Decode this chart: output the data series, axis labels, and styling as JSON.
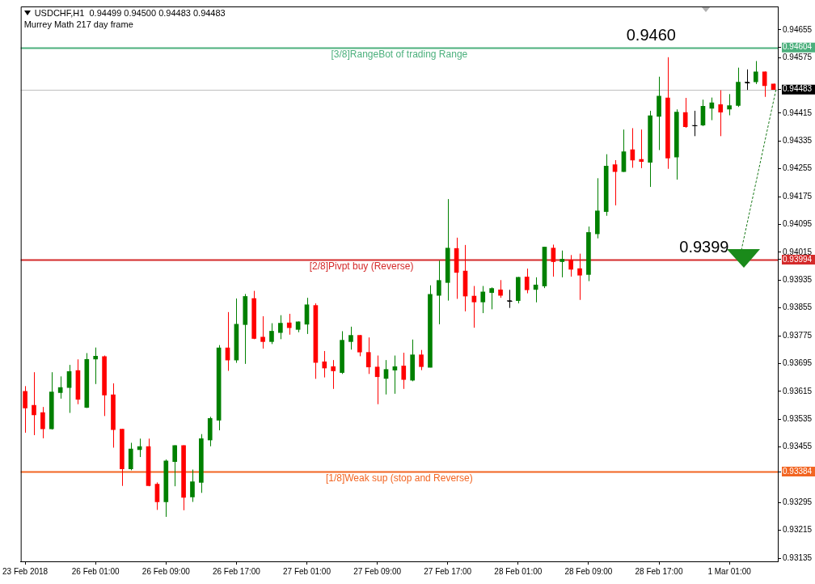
{
  "chart_data": {
    "type": "candlestick",
    "title": "USDCHF,H1  0.94499 0.94500 0.94483 0.94483",
    "subtitle": "Murrey Math 217 day frame",
    "categories": [
      "23 Feb 2018",
      null,
      null,
      null,
      null,
      null,
      null,
      null,
      "26 Feb 01:00",
      null,
      null,
      null,
      null,
      null,
      null,
      null,
      "26 Feb 09:00",
      null,
      null,
      null,
      null,
      null,
      null,
      null,
      "26 Feb 17:00",
      null,
      null,
      null,
      null,
      null,
      null,
      null,
      "27 Feb 01:00",
      null,
      null,
      null,
      null,
      null,
      null,
      null,
      "27 Feb 09:00",
      null,
      null,
      null,
      null,
      null,
      null,
      null,
      "27 Feb 17:00",
      null,
      null,
      null,
      null,
      null,
      null,
      null,
      "28 Feb 01:00",
      null,
      null,
      null,
      null,
      null,
      null,
      null,
      "28 Feb 09:00",
      null,
      null,
      null,
      null,
      null,
      null,
      null,
      "28 Feb 17:00",
      null,
      null,
      null,
      null,
      null,
      null,
      null,
      "1 Mar 01:00",
      null,
      null,
      null,
      null,
      null
    ],
    "ohlc": [
      [
        0.93615,
        0.9363,
        0.93496,
        0.93567
      ],
      [
        0.93575,
        0.9367,
        0.93489,
        0.93547
      ],
      [
        0.93554,
        0.9357,
        0.9348,
        0.93507
      ],
      [
        0.93507,
        0.9367,
        0.93505,
        0.93613
      ],
      [
        0.93611,
        0.93658,
        0.93594,
        0.93626
      ],
      [
        0.93626,
        0.93691,
        0.93553,
        0.93672
      ],
      [
        0.93675,
        0.93707,
        0.93578,
        0.93592
      ],
      [
        0.93569,
        0.93725,
        0.93567,
        0.93707
      ],
      [
        0.93708,
        0.93741,
        0.93636,
        0.93716
      ],
      [
        0.93715,
        0.93718,
        0.93544,
        0.93604
      ],
      [
        0.93605,
        0.93638,
        0.93453,
        0.93505
      ],
      [
        0.93506,
        0.93507,
        0.93343,
        0.93392
      ],
      [
        0.93392,
        0.93467,
        0.93388,
        0.93449
      ],
      [
        0.93447,
        0.93479,
        0.93426,
        0.93456
      ],
      [
        0.93456,
        0.93479,
        0.93342,
        0.93344
      ],
      [
        0.93348,
        0.93353,
        0.93274,
        0.93297
      ],
      [
        0.93297,
        0.93419,
        0.93254,
        0.93415
      ],
      [
        0.93413,
        0.9346,
        0.93342,
        0.93459
      ],
      [
        0.93459,
        0.9346,
        0.93273,
        0.9331
      ],
      [
        0.93311,
        0.9339,
        0.93297,
        0.93355
      ],
      [
        0.93353,
        0.93492,
        0.93323,
        0.93479
      ],
      [
        0.93475,
        0.93542,
        0.93457,
        0.93537
      ],
      [
        0.93532,
        0.93748,
        0.93503,
        0.9374
      ],
      [
        0.9374,
        0.93843,
        0.93674,
        0.93705
      ],
      [
        0.93705,
        0.93882,
        0.93697,
        0.93808
      ],
      [
        0.93807,
        0.93895,
        0.93694,
        0.93888
      ],
      [
        0.93882,
        0.93904,
        0.93765,
        0.93767
      ],
      [
        0.93771,
        0.93831,
        0.93738,
        0.93758
      ],
      [
        0.93758,
        0.93811,
        0.93751,
        0.93788
      ],
      [
        0.93784,
        0.93834,
        0.93765,
        0.93811
      ],
      [
        0.93812,
        0.93838,
        0.93778,
        0.93798
      ],
      [
        0.93793,
        0.93816,
        0.93785,
        0.93815
      ],
      [
        0.93808,
        0.93884,
        0.9378,
        0.93864
      ],
      [
        0.93862,
        0.93868,
        0.93651,
        0.93698
      ],
      [
        0.937,
        0.93731,
        0.93655,
        0.93682
      ],
      [
        0.93686,
        0.93705,
        0.93622,
        0.93674
      ],
      [
        0.93669,
        0.93788,
        0.93665,
        0.93762
      ],
      [
        0.93758,
        0.93801,
        0.93735,
        0.93776
      ],
      [
        0.93776,
        0.93777,
        0.93716,
        0.93728
      ],
      [
        0.93727,
        0.9377,
        0.93665,
        0.93685
      ],
      [
        0.93685,
        0.93718,
        0.93578,
        0.93657
      ],
      [
        0.93652,
        0.93705,
        0.93606,
        0.93678
      ],
      [
        0.93676,
        0.93718,
        0.93608,
        0.93686
      ],
      [
        0.93688,
        0.93726,
        0.93622,
        0.93649
      ],
      [
        0.93647,
        0.93764,
        0.93644,
        0.9372
      ],
      [
        0.9372,
        0.93734,
        0.93676,
        0.93686
      ],
      [
        0.93684,
        0.9392,
        0.93684,
        0.93894
      ],
      [
        0.93891,
        0.93991,
        0.93808,
        0.93934
      ],
      [
        0.93928,
        0.94168,
        0.93876,
        0.94027
      ],
      [
        0.94026,
        0.94057,
        0.93881,
        0.93957
      ],
      [
        0.93961,
        0.94036,
        0.93845,
        0.93889
      ],
      [
        0.93889,
        0.93918,
        0.93798,
        0.93872
      ],
      [
        0.93872,
        0.93918,
        0.9384,
        0.93901
      ],
      [
        0.93899,
        0.93914,
        0.93851,
        0.93911
      ],
      [
        0.93907,
        0.93935,
        0.93884,
        0.93891
      ],
      [
        0.93876,
        0.93907,
        0.93855,
        0.93876
      ],
      [
        0.93876,
        0.93944,
        0.93868,
        0.93943
      ],
      [
        0.93944,
        0.93968,
        0.93897,
        0.93907
      ],
      [
        0.93908,
        0.93943,
        0.93871,
        0.93921
      ],
      [
        0.93918,
        0.94031,
        0.93912,
        0.9403
      ],
      [
        0.94027,
        0.94037,
        0.93945,
        0.93988
      ],
      [
        0.93988,
        0.9402,
        0.93943,
        0.93995
      ],
      [
        0.93993,
        0.94007,
        0.93945,
        0.93966
      ],
      [
        0.93968,
        0.94011,
        0.93878,
        0.93949
      ],
      [
        0.93951,
        0.94089,
        0.93932,
        0.94072
      ],
      [
        0.94068,
        0.94228,
        0.94055,
        0.94134
      ],
      [
        0.94132,
        0.94297,
        0.9412,
        0.94263
      ],
      [
        0.94267,
        0.9428,
        0.9415,
        0.94247
      ],
      [
        0.94247,
        0.94368,
        0.94246,
        0.94304
      ],
      [
        0.9431,
        0.94372,
        0.94258,
        0.9428
      ],
      [
        0.94282,
        0.94368,
        0.94257,
        0.94276
      ],
      [
        0.94274,
        0.94422,
        0.94203,
        0.94408
      ],
      [
        0.94406,
        0.9452,
        0.94309,
        0.94464
      ],
      [
        0.94459,
        0.94576,
        0.94255,
        0.94286
      ],
      [
        0.94289,
        0.94426,
        0.94224,
        0.94418
      ],
      [
        0.94417,
        0.94459,
        0.94373,
        0.94376
      ],
      [
        0.9438,
        0.94422,
        0.94349,
        0.9438
      ],
      [
        0.94381,
        0.94454,
        0.94378,
        0.94435
      ],
      [
        0.94429,
        0.9446,
        0.94395,
        0.94445
      ],
      [
        0.9444,
        0.94481,
        0.94349,
        0.94418
      ],
      [
        0.94427,
        0.9447,
        0.94409,
        0.94437
      ],
      [
        0.94437,
        0.94546,
        0.94433,
        0.94504
      ],
      [
        0.94504,
        0.94541,
        0.94482,
        0.94504
      ],
      [
        0.94505,
        0.94565,
        0.94499,
        0.94534
      ],
      [
        0.94534,
        0.94535,
        0.94462,
        0.94494
      ],
      [
        0.94499,
        0.945,
        0.94483,
        0.94483
      ]
    ],
    "colors": [
      "#ff0000",
      "#ff0000",
      "#ff0000",
      "#008000",
      "#008000",
      "#008000",
      "#ff0000",
      "#008000",
      "#008000",
      "#ff0000",
      "#ff0000",
      "#ff0000",
      "#008000",
      "#008000",
      "#ff0000",
      "#ff0000",
      "#008000",
      "#008000",
      "#ff0000",
      "#008000",
      "#008000",
      "#008000",
      "#008000",
      "#ff0000",
      "#008000",
      "#008000",
      "#ff0000",
      "#ff0000",
      "#008000",
      "#008000",
      "#ff0000",
      "#008000",
      "#008000",
      "#ff0000",
      "#ff0000",
      "#ff0000",
      "#008000",
      "#008000",
      "#ff0000",
      "#ff0000",
      "#ff0000",
      "#008000",
      "#008000",
      "#ff0000",
      "#008000",
      "#ff0000",
      "#008000",
      "#008000",
      "#008000",
      "#ff0000",
      "#ff0000",
      "#ff0000",
      "#008000",
      "#008000",
      "#ff0000",
      "#000000",
      "#008000",
      "#ff0000",
      "#008000",
      "#008000",
      "#ff0000",
      "#008000",
      "#ff0000",
      "#ff0000",
      "#008000",
      "#008000",
      "#008000",
      "#ff0000",
      "#008000",
      "#ff0000",
      "#ff0000",
      "#008000",
      "#008000",
      "#ff0000",
      "#008000",
      "#ff0000",
      "#000000",
      "#008000",
      "#008000",
      "#ff0000",
      "#008000",
      "#008000",
      "#000000",
      "#008000",
      "#ff0000",
      "#ff0000"
    ],
    "ylim": [
      0.93126,
      0.94722
    ],
    "yticks": [
      0.93135,
      0.93215,
      0.93295,
      0.93384,
      0.93455,
      0.93535,
      0.93615,
      0.93695,
      0.93775,
      0.93855,
      0.93935,
      0.93994,
      0.94015,
      0.94095,
      0.94175,
      0.94255,
      0.94335,
      0.94415,
      0.94483,
      0.94575,
      0.94604,
      0.94655
    ],
    "ref_lines": [
      {
        "axis": "y",
        "value": 0.94604,
        "label": "[3/8]RangeBot of trading Range",
        "color": "#4cb07d"
      },
      {
        "axis": "y",
        "value": 0.94483,
        "label": null,
        "color": "#c0c0c0"
      },
      {
        "axis": "y",
        "value": 0.93994,
        "label": "[2/8]Pivpt buy (Reverse)",
        "color": "#d42a2a"
      },
      {
        "axis": "y",
        "value": 0.93384,
        "label": "[1/8]Weak sup (stop and Reverse)",
        "color": "#f26522"
      }
    ],
    "annotations": [
      {
        "text": "0.9460",
        "y": 0.946
      },
      {
        "text": "0.9399",
        "y": 0.9399
      }
    ]
  }
}
